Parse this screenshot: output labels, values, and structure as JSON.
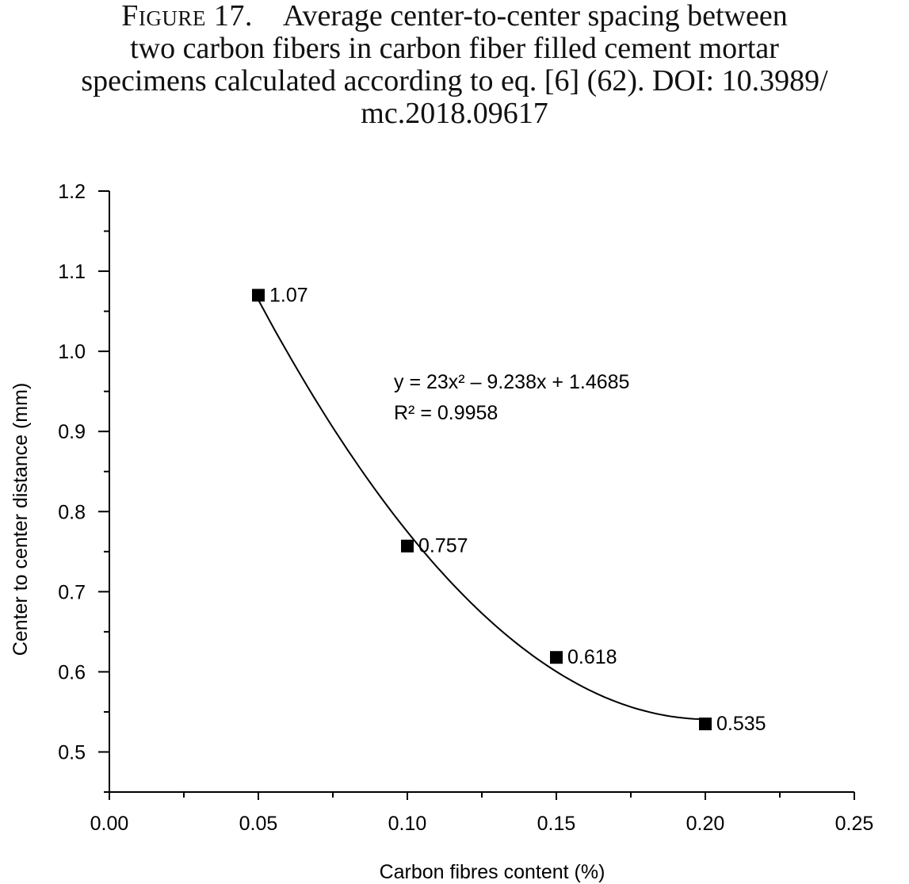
{
  "caption": {
    "figure_label": "Figure 17.",
    "lines": [
      "Average center-to-center spacing between",
      "two carbon fibers in carbon fiber filled cement mortar",
      "specimens calculated according to eq. [6] (62). DOI: 10.3989/",
      "mc.2018.09617"
    ]
  },
  "chart_data": {
    "type": "scatter",
    "xlabel": "Carbon fibres content (%)",
    "ylabel": "Center to center distance (mm)",
    "xlim": [
      0,
      0.25
    ],
    "ylim": [
      0.45,
      1.2
    ],
    "x_ticks": [
      "0.00",
      "0.05",
      "0.10",
      "0.15",
      "0.20",
      "0.25"
    ],
    "y_ticks": [
      "0.5",
      "0.6",
      "0.7",
      "0.8",
      "0.9",
      "1.0",
      "1.1",
      "1.2"
    ],
    "grid": false,
    "marker": "square",
    "series": [
      {
        "x": [
          0.05,
          0.1,
          0.15,
          0.2
        ],
        "y": [
          1.07,
          0.757,
          0.618,
          0.535
        ],
        "labels": [
          "1.07",
          "0.757",
          "0.618",
          "0.535"
        ]
      }
    ],
    "trendline": {
      "type": "polynomial",
      "coefficients": [
        23,
        -9.238,
        1.4685
      ],
      "equation": "y = 23x² – 9.238x + 1.4685",
      "r_squared": "R² = 0.9958"
    }
  }
}
